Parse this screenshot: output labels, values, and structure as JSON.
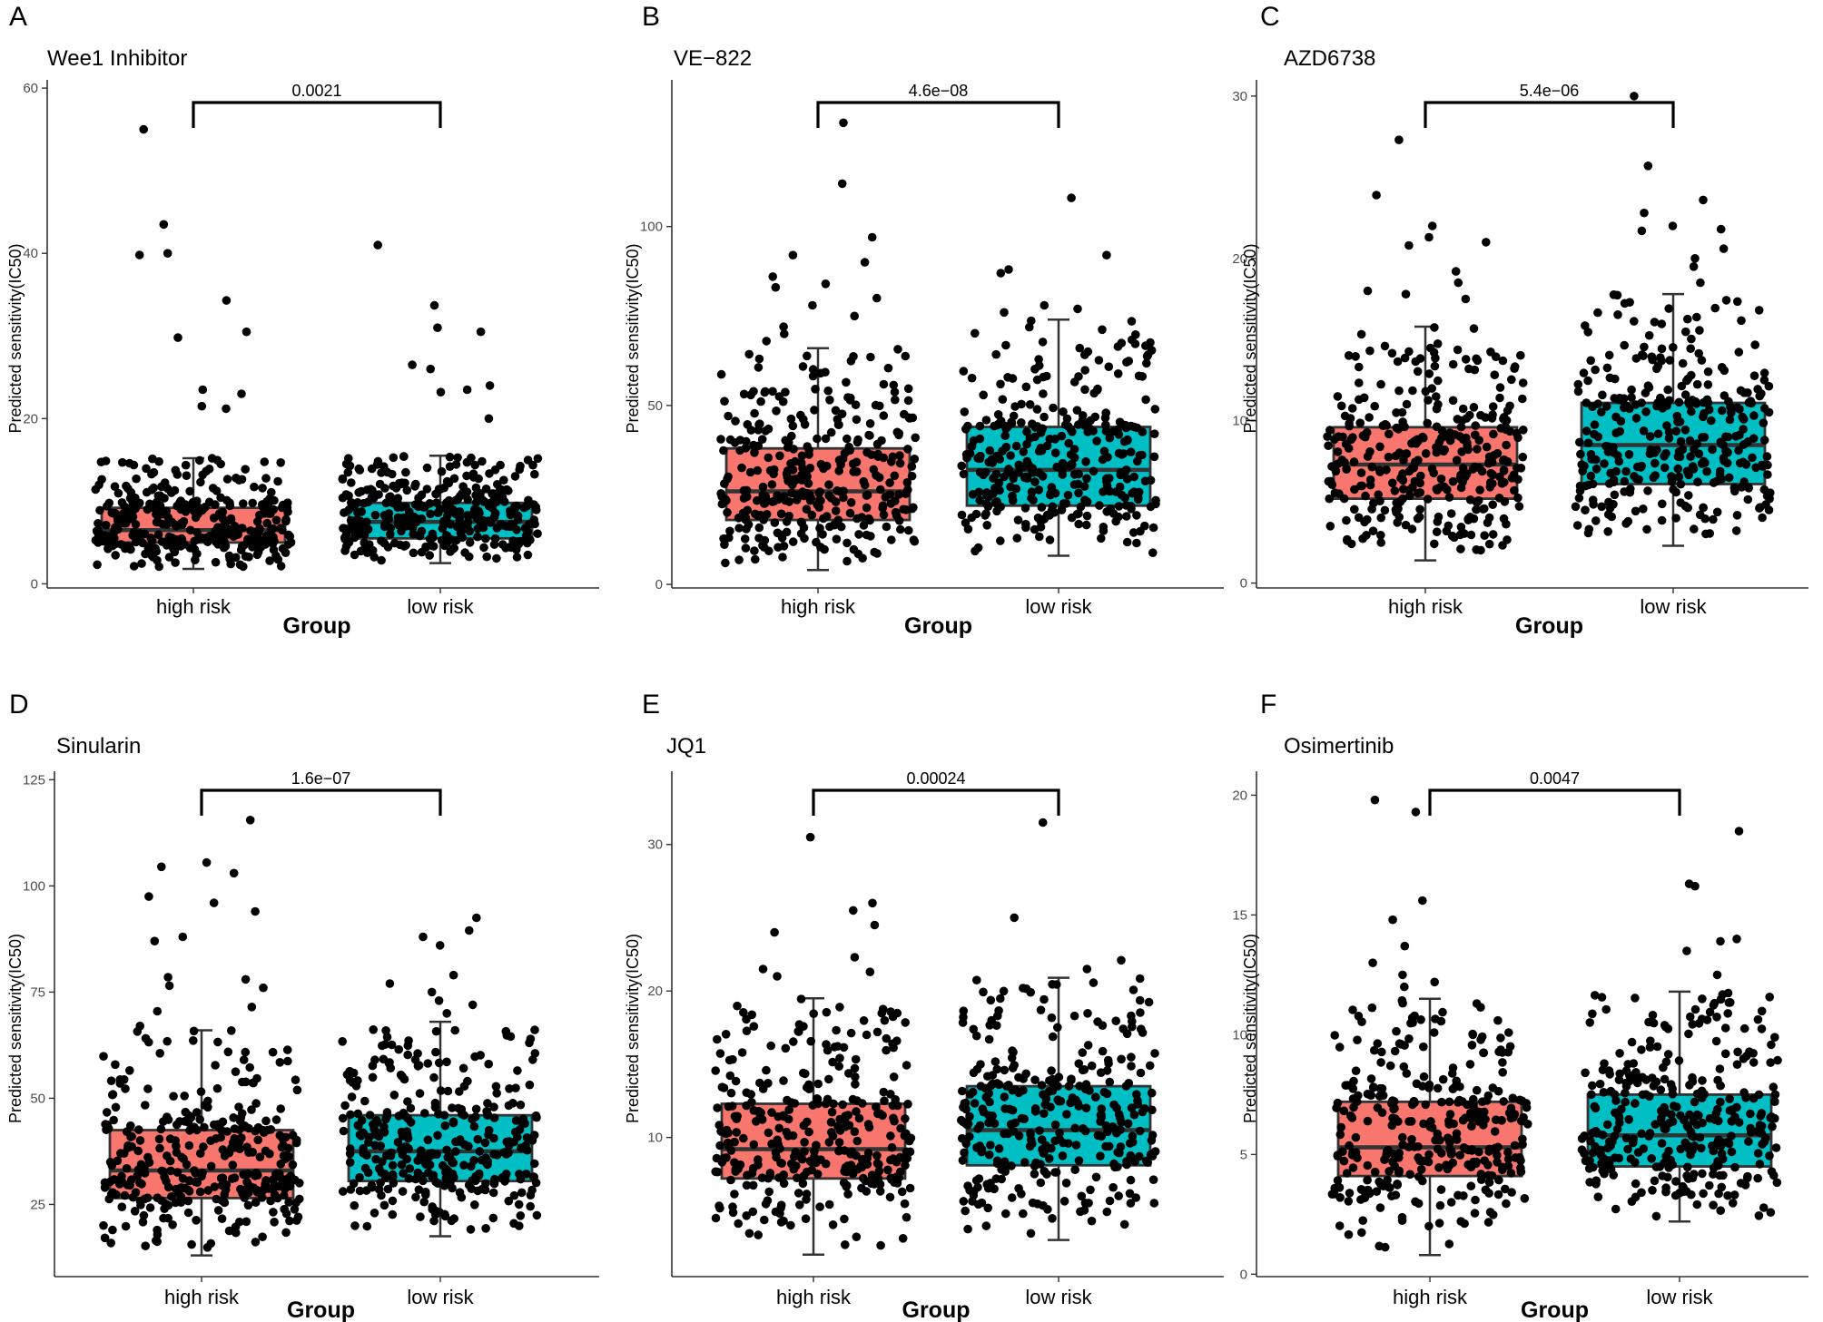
{
  "figure": {
    "colors": {
      "high_risk": "#F8766D",
      "low_risk": "#00BFC4",
      "outline": "#333333",
      "point": "#000000",
      "axis": "#333333"
    },
    "shared": {
      "ylabel": "Predicted sensitivity(IC50)",
      "xlabel": "Group",
      "groups": [
        "high risk",
        "low risk"
      ]
    }
  },
  "chart_data": [
    {
      "panel": "A",
      "type": "box",
      "title": "Wee1 Inhibitor",
      "pvalue": "0.0021",
      "xlabel": "Group",
      "ylabel": "Predicted sensitivity(IC50)",
      "categories": [
        "high risk",
        "low risk"
      ],
      "ylim": [
        -0.5,
        61
      ],
      "yticks": [
        0,
        20,
        40,
        60
      ],
      "boxes": [
        {
          "group": "high risk",
          "q1": 5.0,
          "median": 6.5,
          "q3": 9.2,
          "whisker_low": 1.8,
          "whisker_high": 15.2,
          "outliers": [
            55.0,
            43.5,
            40.0,
            39.8,
            34.3,
            30.5,
            29.8,
            23.5,
            23.0,
            21.5,
            21.2
          ]
        },
        {
          "group": "low risk",
          "q1": 5.5,
          "median": 7.5,
          "q3": 9.8,
          "whisker_low": 2.5,
          "whisker_high": 15.5,
          "outliers": [
            41.0,
            33.7,
            31.0,
            30.5,
            26.5,
            26.0,
            24.0,
            23.5,
            23.2,
            20.0
          ]
        }
      ],
      "n_points": [
        330,
        330
      ]
    },
    {
      "panel": "B",
      "type": "box",
      "title": "VE−822",
      "pvalue": "4.6e−08",
      "xlabel": "Group",
      "ylabel": "Predicted sensitivity(IC50)",
      "categories": [
        "high risk",
        "low risk"
      ],
      "ylim": [
        -1,
        141
      ],
      "yticks": [
        0,
        50,
        100
      ],
      "boxes": [
        {
          "group": "high risk",
          "q1": 18,
          "median": 26,
          "q3": 38,
          "whisker_low": 4,
          "whisker_high": 66,
          "outliers": [
            129,
            112,
            97,
            92,
            90,
            86,
            84,
            83,
            80,
            78,
            75,
            72,
            70,
            68
          ]
        },
        {
          "group": "low risk",
          "q1": 22,
          "median": 32,
          "q3": 44,
          "whisker_low": 8,
          "whisker_high": 74,
          "outliers": [
            108,
            92,
            88,
            87,
            78,
            77,
            76
          ]
        }
      ],
      "n_points": [
        330,
        330
      ]
    },
    {
      "panel": "C",
      "type": "box",
      "title": "AZD6738",
      "pvalue": "5.4e−06",
      "xlabel": "Group",
      "ylabel": "Predicted sensitivity(IC50)",
      "categories": [
        "high risk",
        "low risk"
      ],
      "ylim": [
        -0.3,
        31
      ],
      "yticks": [
        0,
        10,
        20,
        30
      ],
      "boxes": [
        {
          "group": "high risk",
          "q1": 5.2,
          "median": 7.3,
          "q3": 9.6,
          "whisker_low": 1.4,
          "whisker_high": 15.8,
          "outliers": [
            27.3,
            23.9,
            22.0,
            21.3,
            21.0,
            20.8,
            19.2,
            18.5,
            18.0,
            17.8,
            17.5
          ]
        },
        {
          "group": "low risk",
          "q1": 6.1,
          "median": 8.5,
          "q3": 11.1,
          "whisker_low": 2.3,
          "whisker_high": 17.8,
          "outliers": [
            30.0,
            25.7,
            23.6,
            22.8,
            22.0,
            21.8,
            21.7,
            20.6,
            20.0,
            19.5,
            18.5
          ]
        }
      ],
      "n_points": [
        330,
        330
      ]
    },
    {
      "panel": "D",
      "type": "box",
      "title": "Sinularin",
      "pvalue": "1.6e−07",
      "xlabel": "Group",
      "ylabel": "Predicted sensitivity(IC50)",
      "categories": [
        "high risk",
        "low risk"
      ],
      "ylim": [
        8,
        127
      ],
      "yticks": [
        25,
        50,
        75,
        100,
        125
      ],
      "boxes": [
        {
          "group": "high risk",
          "q1": 26.5,
          "median": 33,
          "q3": 42.5,
          "whisker_low": 13,
          "whisker_high": 66,
          "outliers": [
            115.5,
            105.5,
            104.5,
            103,
            97.5,
            96,
            94,
            88,
            87,
            78.5,
            78,
            76.5,
            76,
            71.5,
            70.5,
            67
          ]
        },
        {
          "group": "low risk",
          "q1": 30.5,
          "median": 37.5,
          "q3": 46,
          "whisker_low": 17.5,
          "whisker_high": 68,
          "outliers": [
            92.5,
            89.5,
            88,
            86,
            79,
            77,
            75,
            73,
            72,
            70
          ]
        }
      ],
      "n_points": [
        330,
        330
      ]
    },
    {
      "panel": "E",
      "type": "box",
      "title": "JQ1",
      "pvalue": "0.00024",
      "xlabel": "Group",
      "ylabel": "Predicted sensitivity(IC50)",
      "categories": [
        "high risk",
        "low risk"
      ],
      "ylim": [
        0.5,
        35
      ],
      "yticks": [
        10,
        20,
        30
      ],
      "boxes": [
        {
          "group": "high risk",
          "q1": 7.2,
          "median": 9.2,
          "q3": 12.3,
          "whisker_low": 2.0,
          "whisker_high": 19.5,
          "outliers": [
            30.5,
            26.0,
            25.5,
            24.5,
            24.0,
            22.3,
            21.5,
            21.3,
            21.0
          ]
        },
        {
          "group": "low risk",
          "q1": 8.1,
          "median": 10.5,
          "q3": 13.5,
          "whisker_low": 3.0,
          "whisker_high": 20.9,
          "outliers": [
            31.5,
            25.0,
            22.1,
            21.5
          ]
        }
      ],
      "n_points": [
        330,
        330
      ]
    },
    {
      "panel": "F",
      "type": "box",
      "title": "Osimertinib",
      "pvalue": "0.0047",
      "xlabel": "Group",
      "ylabel": "Predicted sensitivity(IC50)",
      "categories": [
        "high risk",
        "low risk"
      ],
      "ylim": [
        -0.1,
        21
      ],
      "yticks": [
        0,
        5,
        10,
        15,
        20
      ],
      "boxes": [
        {
          "group": "high risk",
          "q1": 4.1,
          "median": 5.3,
          "q3": 7.2,
          "whisker_low": 0.8,
          "whisker_high": 11.5,
          "outliers": [
            19.8,
            19.3,
            15.6,
            14.8,
            13.7,
            13.0,
            12.5,
            12.2,
            12.0
          ]
        },
        {
          "group": "low risk",
          "q1": 4.5,
          "median": 5.8,
          "q3": 7.5,
          "whisker_low": 2.2,
          "whisker_high": 11.8,
          "outliers": [
            18.5,
            16.3,
            16.2,
            14.0,
            13.9,
            13.5,
            12.5
          ]
        }
      ],
      "n_points": [
        330,
        330
      ]
    }
  ]
}
